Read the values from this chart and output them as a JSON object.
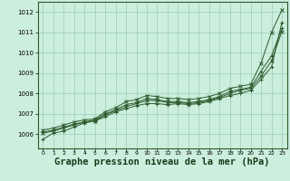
{
  "background_color": "#cceedd",
  "grid_color": "#99ccbb",
  "line_color": "#2d5a2d",
  "xlabel": "Graphe pression niveau de la mer (hPa)",
  "xlabel_fontsize": 7.5,
  "xlim": [
    -0.5,
    23.5
  ],
  "ylim": [
    1005.3,
    1012.5
  ],
  "yticks": [
    1006,
    1007,
    1008,
    1009,
    1010,
    1011,
    1012
  ],
  "xticks": [
    0,
    1,
    2,
    3,
    4,
    5,
    6,
    7,
    8,
    9,
    10,
    11,
    12,
    13,
    14,
    15,
    16,
    17,
    18,
    19,
    20,
    21,
    22,
    23
  ],
  "series": [
    [
      1005.75,
      1006.05,
      1006.15,
      1006.35,
      1006.55,
      1006.65,
      1006.85,
      1007.1,
      1007.25,
      1007.4,
      1007.5,
      1007.5,
      1007.45,
      1007.5,
      1007.45,
      1007.5,
      1007.6,
      1007.75,
      1007.9,
      1008.0,
      1008.15,
      1008.7,
      1009.3,
      1011.5
    ],
    [
      1006.05,
      1006.15,
      1006.3,
      1006.45,
      1006.6,
      1006.65,
      1006.95,
      1007.15,
      1007.35,
      1007.5,
      1007.65,
      1007.65,
      1007.55,
      1007.55,
      1007.5,
      1007.55,
      1007.65,
      1007.8,
      1008.0,
      1008.15,
      1008.25,
      1008.85,
      1009.6,
      1011.05
    ],
    [
      1006.1,
      1006.2,
      1006.35,
      1006.5,
      1006.6,
      1006.7,
      1007.0,
      1007.2,
      1007.45,
      1007.55,
      1007.75,
      1007.7,
      1007.6,
      1007.6,
      1007.55,
      1007.6,
      1007.7,
      1007.85,
      1008.1,
      1008.2,
      1008.3,
      1009.1,
      1009.85,
      1011.2
    ],
    [
      1006.2,
      1006.3,
      1006.45,
      1006.6,
      1006.7,
      1006.75,
      1007.1,
      1007.3,
      1007.6,
      1007.7,
      1007.9,
      1007.85,
      1007.75,
      1007.75,
      1007.7,
      1007.75,
      1007.85,
      1008.0,
      1008.25,
      1008.35,
      1008.45,
      1009.5,
      1011.0,
      1012.1
    ]
  ]
}
